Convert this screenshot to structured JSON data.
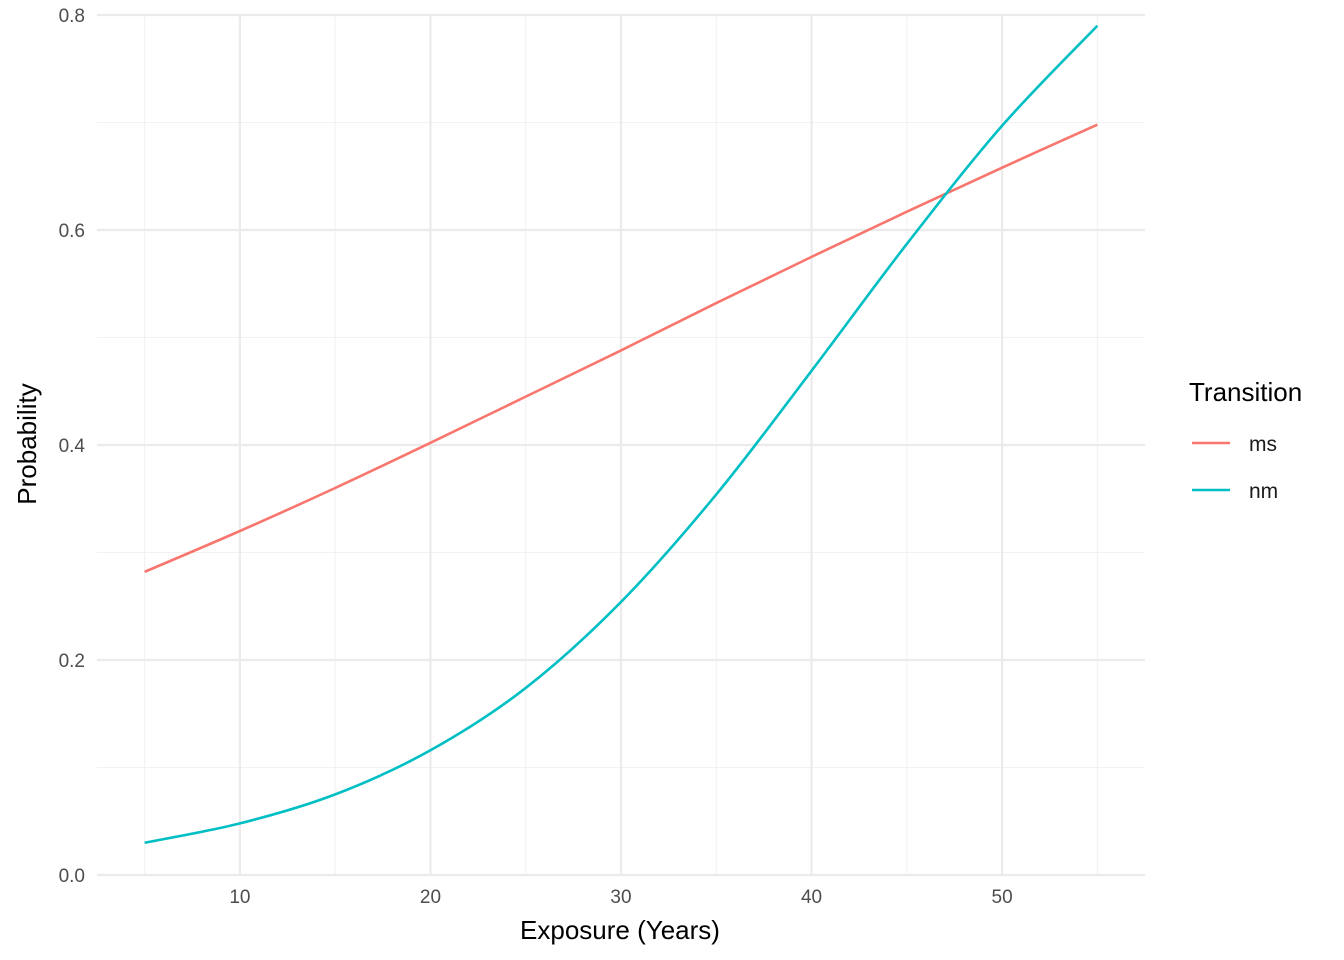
{
  "chart_data": {
    "type": "line",
    "title": "",
    "xlabel": "Exposure (Years)",
    "ylabel": "Probability",
    "xlim": [
      2.5,
      57.5
    ],
    "ylim": [
      0.0,
      0.8
    ],
    "x_ticks": [
      10,
      20,
      30,
      40,
      50
    ],
    "x_minor_ticks": [
      5,
      15,
      25,
      35,
      45,
      55
    ],
    "y_ticks": [
      0.0,
      0.2,
      0.4,
      0.6,
      0.8
    ],
    "y_tick_labels": [
      "0.0",
      "0.2",
      "0.4",
      "0.6",
      "0.8"
    ],
    "y_minor_ticks": [
      0.1,
      0.3,
      0.5,
      0.7
    ],
    "grid": true,
    "legend": {
      "title": "Transition",
      "position": "right"
    },
    "series": [
      {
        "name": "ms",
        "color": "#F8766D",
        "x": [
          5,
          10,
          15,
          20,
          25,
          30,
          35,
          40,
          45,
          50,
          55
        ],
        "y": [
          0.282,
          0.32,
          0.36,
          0.402,
          0.445,
          0.488,
          0.532,
          0.575,
          0.617,
          0.658,
          0.698
        ]
      },
      {
        "name": "nm",
        "color": "#00BFC4",
        "x": [
          5,
          10,
          15,
          20,
          25,
          30,
          35,
          40,
          45,
          50,
          55
        ],
        "y": [
          0.03,
          0.048,
          0.075,
          0.116,
          0.174,
          0.254,
          0.354,
          0.469,
          0.587,
          0.697,
          0.79
        ]
      }
    ]
  }
}
